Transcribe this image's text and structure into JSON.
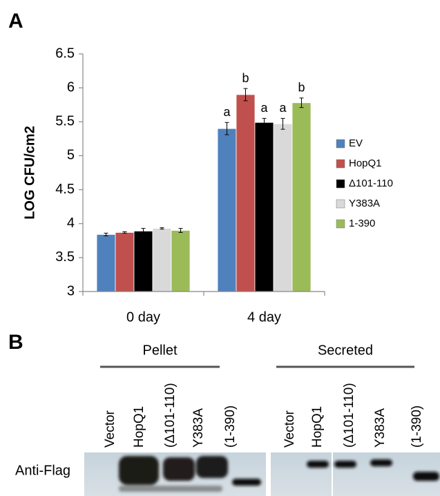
{
  "chart_data": {
    "type": "bar",
    "panel_label": "A",
    "y_label": "LOG CFU/cm2",
    "categories": [
      "0 day",
      "4 day"
    ],
    "ylim": [
      3,
      6.5
    ],
    "yticks": [
      3,
      3.5,
      4,
      4.5,
      5,
      5.5,
      6,
      6.5
    ],
    "grid": false,
    "legend": "right",
    "series": [
      {
        "name": "EV",
        "color": "#4f81bd",
        "values": [
          3.84,
          5.4
        ],
        "errors": [
          0.02,
          0.09
        ],
        "significance": [
          null,
          "a"
        ]
      },
      {
        "name": "HopQ1",
        "color": "#c0504d",
        "values": [
          3.87,
          5.9
        ],
        "errors": [
          0.01,
          0.09
        ],
        "significance": [
          null,
          "b"
        ]
      },
      {
        "name": "Δ101-110",
        "color": "#000000",
        "values": [
          3.89,
          5.49
        ],
        "errors": [
          0.04,
          0.06
        ],
        "significance": [
          null,
          "a"
        ]
      },
      {
        "name": "Y383A",
        "color": "#d9d9d9",
        "values": [
          3.93,
          5.47
        ],
        "errors": [
          0.01,
          0.08
        ],
        "significance": [
          null,
          "a"
        ]
      },
      {
        "name": "1-390",
        "color": "#9bbb59",
        "values": [
          3.9,
          5.78
        ],
        "errors": [
          0.03,
          0.07
        ],
        "significance": [
          null,
          "b"
        ]
      }
    ]
  },
  "blot": {
    "panel_label": "B",
    "row_label": "Anti-Flag",
    "groups": [
      {
        "name": "Pellet",
        "lanes": [
          "Vector",
          "HopQ1",
          "(Δ101-110)",
          "Y383A",
          "(1-390)"
        ]
      },
      {
        "name": "Secreted",
        "lanes": [
          "Vector",
          "HopQ1",
          "(Δ101-110)",
          "Y383A",
          "(1-390)"
        ]
      }
    ]
  }
}
